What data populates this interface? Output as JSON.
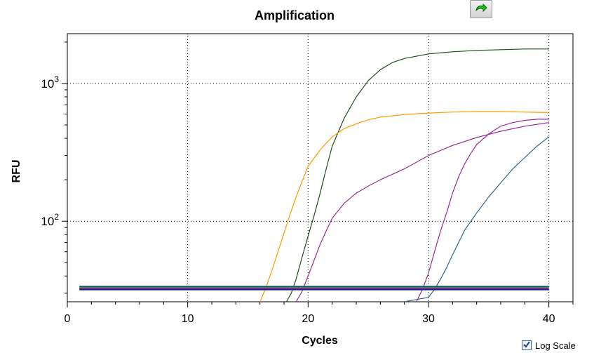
{
  "toolbar": {
    "export_icon": "green-arrow-icon"
  },
  "controls": {
    "log_scale_label": "Log Scale",
    "log_scale_checked": true,
    "checkmark_icon": "check-icon"
  },
  "chart_data": {
    "type": "line",
    "title": "Amplification",
    "xlabel": "Cycles",
    "ylabel": "RFU",
    "xlim": [
      0,
      42
    ],
    "ylim": [
      26,
      2300
    ],
    "yscale": "log",
    "grid": true,
    "x_ticks": [
      0,
      10,
      20,
      30,
      40
    ],
    "x_tick_labels": [
      "0",
      "10",
      "20",
      "30",
      "40"
    ],
    "y_ticks": [
      100,
      1000
    ],
    "y_tick_labels": [
      {
        "base": "10",
        "exp": "2"
      },
      {
        "base": "10",
        "exp": "3"
      }
    ],
    "series": [
      {
        "color": "#1f4d1f",
        "x": [
          18.2,
          18.6,
          19,
          19.5,
          20,
          20.5,
          21,
          21.5,
          22,
          23,
          24,
          25,
          26,
          27,
          28,
          30,
          32,
          34,
          36,
          38,
          40
        ],
        "y": [
          26,
          30,
          38,
          55,
          78,
          110,
          160,
          240,
          350,
          560,
          800,
          1050,
          1260,
          1420,
          1520,
          1640,
          1700,
          1740,
          1760,
          1780,
          1780
        ]
      },
      {
        "color": "#ff9900",
        "x": [
          16,
          16.5,
          17,
          17.5,
          18,
          18.5,
          19,
          19.5,
          20,
          21,
          22,
          23,
          24,
          25,
          26,
          28,
          30,
          32,
          34,
          36,
          38,
          40
        ],
        "y": [
          26,
          33,
          44,
          60,
          82,
          112,
          150,
          195,
          250,
          330,
          410,
          470,
          510,
          545,
          570,
          595,
          610,
          620,
          625,
          625,
          620,
          615
        ]
      },
      {
        "color": "#9c2a9c",
        "x": [
          19,
          19.5,
          20,
          20.5,
          21,
          21.5,
          22,
          23,
          24,
          25,
          26,
          28,
          30,
          32,
          34,
          36,
          38,
          40
        ],
        "y": [
          26,
          31,
          40,
          52,
          68,
          85,
          105,
          135,
          160,
          180,
          200,
          240,
          300,
          355,
          405,
          450,
          490,
          520
        ]
      },
      {
        "color": "#9c2a9c",
        "x": [
          29,
          29.5,
          30,
          30.5,
          31,
          31.5,
          32,
          32.5,
          33,
          33.5,
          34,
          35,
          36,
          37,
          38,
          39,
          40
        ],
        "y": [
          26,
          32,
          42,
          60,
          85,
          115,
          160,
          210,
          260,
          310,
          360,
          430,
          490,
          520,
          540,
          550,
          550
        ]
      },
      {
        "color": "#2e6592",
        "x": [
          28,
          29,
          30,
          30.5,
          31,
          31.5,
          32,
          32.5,
          33,
          34,
          35,
          36,
          37,
          38,
          39,
          40
        ],
        "y": [
          26,
          27,
          28,
          32,
          38,
          46,
          57,
          70,
          86,
          115,
          150,
          190,
          240,
          290,
          350,
          410
        ]
      },
      {
        "color": "#1e3a52",
        "x": [
          1,
          40
        ],
        "y": [
          33.5,
          33.5
        ]
      },
      {
        "color": "#2a8a8a",
        "x": [
          1,
          40
        ],
        "y": [
          33.0,
          33.0
        ]
      },
      {
        "color": "#a0206a",
        "x": [
          1,
          40
        ],
        "y": [
          32.3,
          32.3
        ]
      },
      {
        "color": "#1a1a8a",
        "x": [
          1,
          40
        ],
        "y": [
          31.9,
          31.9
        ]
      }
    ]
  }
}
